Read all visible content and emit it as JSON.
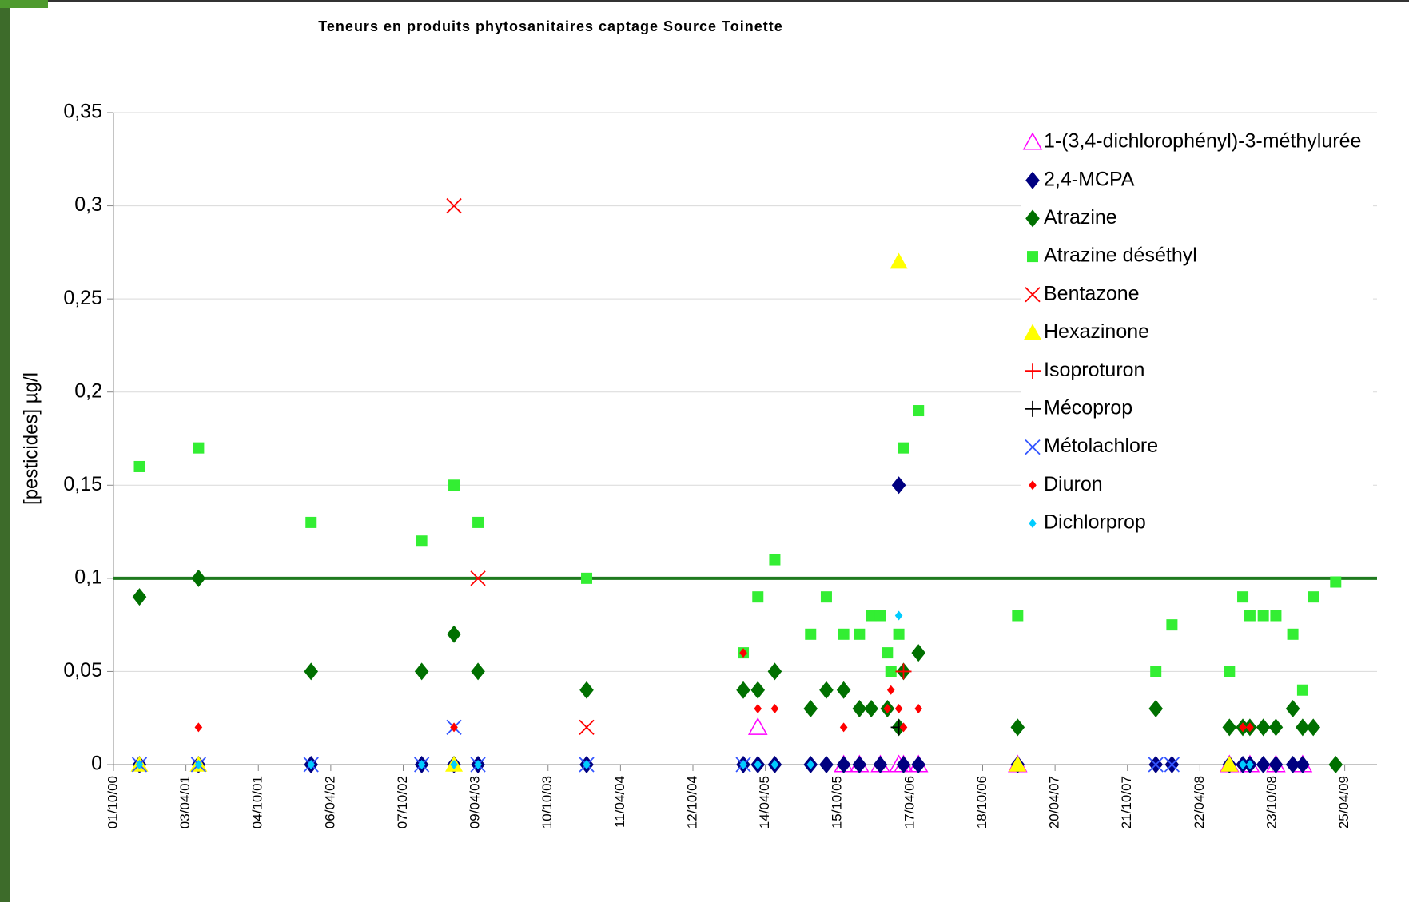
{
  "chart_data": {
    "type": "scatter",
    "title": "Teneurs en produits phytosanitaires captage Source Toinette",
    "y_label": "[pesticides] µg/l",
    "xlim": [
      "01/10/00",
      "16/07/09"
    ],
    "xticks": [
      "01/10/00",
      "03/04/01",
      "04/10/01",
      "06/04/02",
      "07/10/02",
      "09/04/03",
      "10/10/03",
      "11/04/04",
      "12/10/04",
      "14/04/05",
      "15/10/05",
      "17/04/06",
      "18/10/06",
      "20/04/07",
      "21/10/07",
      "22/04/08",
      "23/10/08",
      "25/04/09"
    ],
    "ylim": [
      0,
      0.35
    ],
    "yticks": [
      0,
      {
        "value": 0.05,
        "label": "0,05"
      },
      {
        "value": 0.1,
        "label": "0,1"
      },
      {
        "value": 0.15,
        "label": "0,15"
      },
      {
        "value": 0.2,
        "label": "0,2"
      },
      {
        "value": 0.25,
        "label": "0,25"
      },
      {
        "value": 0.3,
        "label": "0,3"
      },
      {
        "value": 0.35,
        "label": "0,35"
      }
    ],
    "grid": true,
    "reference_line": {
      "value": 0.1,
      "color": "#1f7a1f"
    },
    "legend": "top-right",
    "series": [
      {
        "name": "1-(3,4-dichlorophényl)-3-méthylurée",
        "color": "#ff00ff",
        "marker": "triangle-open",
        "x": [
          "26/03/05",
          "15/01/07",
          "30/10/05",
          "09/12/05",
          "31/01/06",
          "19/03/06",
          "31/03/06",
          "08/05/06",
          "06/07/08",
          "27/08/08",
          "01/11/08",
          "08/01/09"
        ],
        "values": [
          0.02,
          0,
          0,
          0,
          0,
          0,
          0,
          0,
          0,
          0,
          0,
          0
        ]
      },
      {
        "name": "2,4-MCPA",
        "color": "#000080",
        "marker": "diamond",
        "x": [
          "06/12/00",
          "05/05/01",
          "15/02/02",
          "23/11/02",
          "13/02/03",
          "15/04/03",
          "16/01/04",
          "17/02/05",
          "26/03/05",
          "08/05/05",
          "07/08/05",
          "16/09/05",
          "30/10/05",
          "09/12/05",
          "31/01/06",
          "19/03/06",
          "31/03/06",
          "08/05/06",
          "15/01/07",
          "01/01/08",
          "11/02/08",
          "06/07/08",
          "09/08/08",
          "27/08/08",
          "30/09/08",
          "01/11/08",
          "14/12/08",
          "08/01/09"
        ],
        "values": [
          0,
          0,
          0,
          0,
          0,
          0,
          0,
          0,
          0,
          0,
          0,
          0,
          0,
          0,
          0,
          0.15,
          0,
          0,
          0,
          0,
          0,
          0,
          0,
          0,
          0,
          0,
          0,
          0
        ]
      },
      {
        "name": "Atrazine",
        "color": "#007000",
        "marker": "diamond",
        "x": [
          "06/12/00",
          "05/05/01",
          "15/02/02",
          "23/11/02",
          "13/02/03",
          "15/04/03",
          "16/01/04",
          "17/02/05",
          "26/03/05",
          "08/05/05",
          "07/08/05",
          "16/09/05",
          "30/10/05",
          "09/12/05",
          "08/01/06",
          "18/02/06",
          "19/03/06",
          "31/03/06",
          "08/05/06",
          "15/01/07",
          "01/01/08",
          "06/07/08",
          "09/08/08",
          "27/08/08",
          "30/09/08",
          "01/11/08",
          "14/12/08",
          "08/01/09",
          "04/02/09",
          "02/04/09"
        ],
        "values": [
          0.09,
          0.1,
          0.05,
          0.05,
          0.07,
          0.05,
          0.04,
          0.04,
          0.04,
          0.05,
          0.03,
          0.04,
          0.04,
          0.03,
          0.03,
          0.03,
          0.02,
          0.05,
          0.06,
          0.02,
          0.03,
          0.02,
          0.02,
          0.02,
          0.02,
          0.02,
          0.03,
          0.02,
          0.02,
          0
        ]
      },
      {
        "name": "Atrazine déséthyl",
        "color": "#33ee33",
        "marker": "square",
        "x": [
          "06/12/00",
          "05/05/01",
          "15/02/02",
          "23/11/02",
          "13/02/03",
          "15/04/03",
          "16/01/04",
          "17/02/05",
          "26/03/05",
          "08/05/05",
          "07/08/05",
          "16/09/05",
          "30/10/05",
          "09/12/05",
          "08/01/06",
          "31/01/06",
          "18/02/06",
          "27/02/06",
          "19/03/06",
          "31/03/06",
          "08/05/06",
          "15/01/07",
          "01/01/08",
          "11/02/08",
          "06/07/08",
          "09/08/08",
          "27/08/08",
          "30/09/08",
          "01/11/08",
          "14/12/08",
          "08/01/09",
          "04/02/09",
          "02/04/09"
        ],
        "values": [
          0.16,
          0.17,
          0.13,
          0.12,
          0.15,
          0.13,
          0.1,
          0.06,
          0.09,
          0.11,
          0.07,
          0.09,
          0.07,
          0.07,
          0.08,
          0.08,
          0.06,
          0.05,
          0.07,
          0.17,
          0.19,
          0.08,
          0.05,
          0.075,
          0.05,
          0.09,
          0.08,
          0.08,
          0.08,
          0.07,
          0.04,
          0.09,
          0.098
        ]
      },
      {
        "name": "Bentazone",
        "color": "#ff0000",
        "marker": "cross",
        "x": [
          "13/02/03",
          "15/04/03",
          "16/01/04"
        ],
        "values": [
          0.3,
          0.1,
          0.02
        ]
      },
      {
        "name": "Hexazinone",
        "color": "#ffff00",
        "marker": "triangle",
        "x": [
          "06/12/00",
          "05/05/01",
          "13/02/03",
          "19/03/06",
          "15/01/07",
          "06/07/08"
        ],
        "values": [
          0,
          0,
          0,
          0.27,
          0,
          0
        ]
      },
      {
        "name": "Isoproturon",
        "color": "#ff0000",
        "marker": "plus",
        "x": [
          "31/03/06"
        ],
        "values": [
          0.05
        ]
      },
      {
        "name": "Mécoprop",
        "color": "#000000",
        "marker": "plus",
        "x": [
          "19/03/06"
        ],
        "values": [
          0.02
        ]
      },
      {
        "name": "Métolachlore",
        "color": "#3355ff",
        "marker": "cross",
        "x": [
          "06/12/00",
          "05/05/01",
          "15/02/02",
          "23/11/02",
          "13/02/03",
          "15/04/03",
          "16/01/04",
          "17/02/05",
          "01/01/08",
          "11/02/08"
        ],
        "values": [
          0,
          0,
          0,
          0,
          0.02,
          0,
          0,
          0,
          0,
          0
        ]
      },
      {
        "name": "Diuron",
        "color": "#ff0000",
        "marker": "small-diamond",
        "x": [
          "05/05/01",
          "13/02/03",
          "17/02/05",
          "26/03/05",
          "08/05/05",
          "30/10/05",
          "18/02/06",
          "27/02/06",
          "19/03/06",
          "31/03/06",
          "08/05/06",
          "09/08/08",
          "27/08/08"
        ],
        "values": [
          0.02,
          0.02,
          0.06,
          0.03,
          0.03,
          0.02,
          0.03,
          0.04,
          0.03,
          0.02,
          0.03,
          0.02,
          0.02
        ]
      },
      {
        "name": "Dichlorprop",
        "color": "#00ccff",
        "marker": "small-diamond",
        "x": [
          "06/12/00",
          "05/05/01",
          "15/02/02",
          "23/11/02",
          "13/02/03",
          "15/04/03",
          "16/01/04",
          "17/02/05",
          "26/03/05",
          "08/05/05",
          "07/08/05",
          "19/03/06",
          "09/08/08",
          "27/08/08"
        ],
        "values": [
          0,
          0,
          0,
          0,
          0,
          0,
          0,
          0,
          0,
          0,
          0,
          0.08,
          0,
          0
        ]
      }
    ]
  }
}
